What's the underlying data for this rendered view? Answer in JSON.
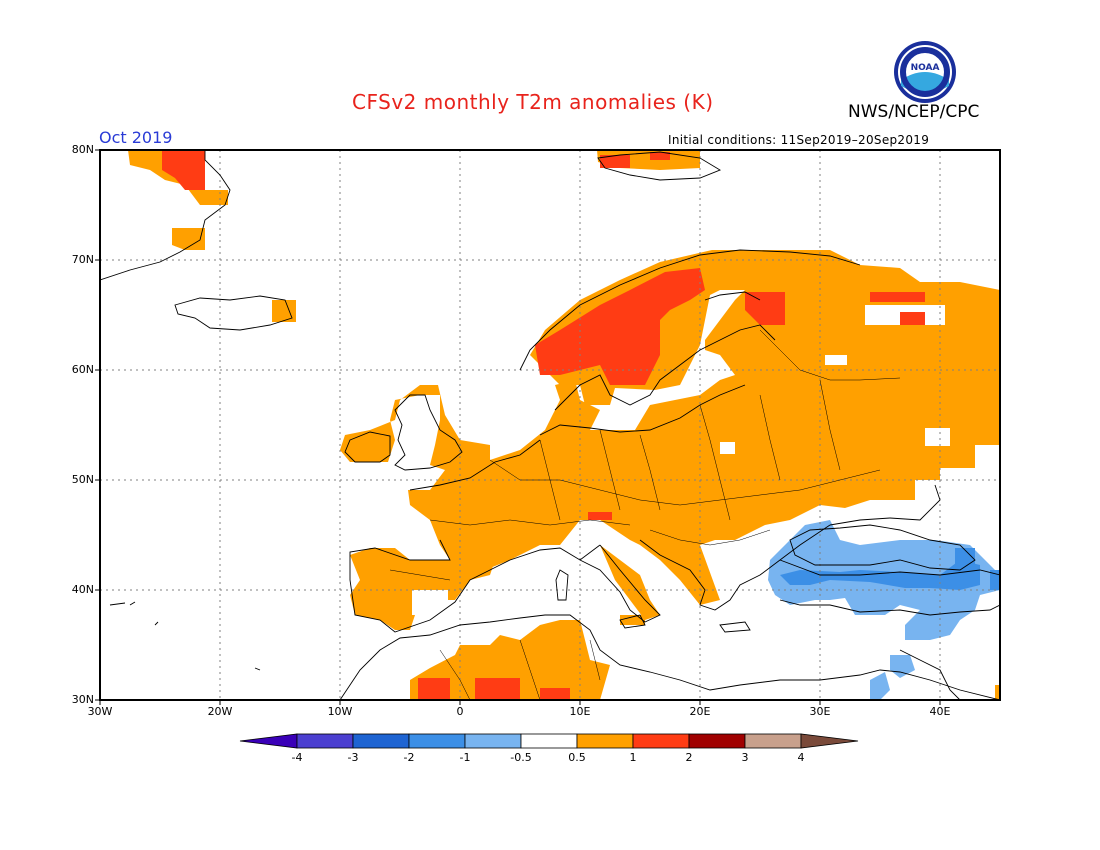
{
  "header": {
    "title": "CFSv2 monthly T2m anomalies (K)",
    "agency": "NWS/NCEP/CPC",
    "logo_text": "NOAA",
    "month": "Oct 2019",
    "initial_conditions": "Initial conditions: 11Sep2019–20Sep2019"
  },
  "axes": {
    "lat_labels": [
      "80N",
      "70N",
      "60N",
      "50N",
      "40N",
      "30N"
    ],
    "lon_labels": [
      "30W",
      "20W",
      "10W",
      "0",
      "10E",
      "20E",
      "30E",
      "40E"
    ]
  },
  "colorbar": {
    "labels": [
      "-4",
      "-3",
      "-2",
      "-1",
      "-0.5",
      "0.5",
      "1",
      "2",
      "3",
      "4"
    ],
    "colors": [
      "#3a00b8",
      "#4b3fd0",
      "#1e64d2",
      "#3c8fe6",
      "#78b4f0",
      "#ffffff",
      "#ffa000",
      "#ff3c14",
      "#a00000",
      "#c8a08c",
      "#7a4a3a"
    ]
  },
  "map_regions": {
    "warm_0_5_to_1": "#ffa000",
    "warm_1_to_2": "#ff3c14",
    "cool_minus_0_5_to_minus_1": "#78b4f0",
    "cool_minus_1_to_minus_2": "#3c8fe6"
  }
}
